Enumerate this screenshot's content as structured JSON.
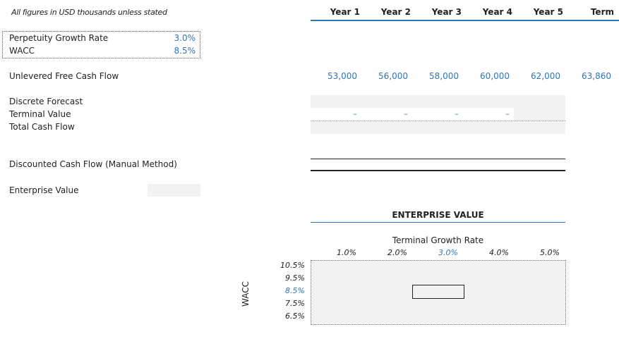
{
  "note": "All figures in USD thousands unless stated",
  "years": [
    "Year 1",
    "Year 2",
    "Year 3",
    "Year 4",
    "Year 5",
    "Term"
  ],
  "inputs": {
    "growth_label": "Perpetuity Growth Rate",
    "growth_value": "3.0%",
    "wacc_label": "WACC",
    "wacc_value": "8.5%"
  },
  "ufcf": {
    "label": "Unlevered Free Cash Flow",
    "values": [
      "53,000",
      "56,000",
      "58,000",
      "60,000",
      "62,000",
      "63,860"
    ]
  },
  "rows": {
    "discrete": "Discrete Forecast",
    "terminal": "Terminal Value",
    "total": "Total Cash Flow",
    "dcf_manual": "Discounted Cash Flow (Manual Method)",
    "ev": "Enterprise Value"
  },
  "terminal_dashes": [
    "–",
    "–",
    "–",
    "–"
  ],
  "sensitivity": {
    "title": "ENTERPRISE VALUE",
    "col_title": "Terminal Growth Rate",
    "growth_rates": [
      "1.0%",
      "2.0%",
      "3.0%",
      "4.0%",
      "5.0%"
    ],
    "row_title": "WACC",
    "wacc_rates": [
      "10.5%",
      "9.5%",
      "8.5%",
      "7.5%",
      "6.5%"
    ]
  }
}
